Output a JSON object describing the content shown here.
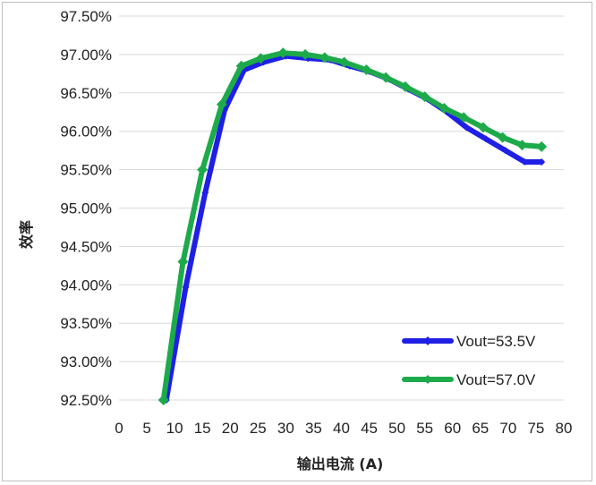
{
  "chart_data": {
    "type": "line",
    "title": "",
    "xlabel": "输出电流 (A)",
    "ylabel": "效率",
    "xlim": [
      0,
      80
    ],
    "ylim": [
      92.5,
      97.5
    ],
    "x_ticks": [
      "0",
      "5",
      "10",
      "15",
      "20",
      "25",
      "30",
      "35",
      "40",
      "45",
      "50",
      "55",
      "60",
      "65",
      "70",
      "75",
      "80"
    ],
    "y_ticks": [
      "92.50%",
      "93.00%",
      "93.50%",
      "94.00%",
      "94.50%",
      "95.00%",
      "95.50%",
      "96.00%",
      "96.50%",
      "97.00%",
      "97.50%"
    ],
    "grid": "horizontal",
    "legend_position": "bottom-right",
    "series": [
      {
        "name": "Vout=53.5V",
        "color": "#1f1fe6",
        "x": [
          8.5,
          12,
          15.5,
          19,
          22.5,
          26,
          30,
          34,
          38,
          41.5,
          45,
          48.5,
          52,
          55.5,
          59,
          62.5,
          66,
          69.5,
          73,
          76
        ],
        "y": [
          92.5,
          93.97,
          95.2,
          96.28,
          96.8,
          96.9,
          96.98,
          96.95,
          96.93,
          96.85,
          96.78,
          96.68,
          96.55,
          96.42,
          96.25,
          96.05,
          95.9,
          95.75,
          95.6,
          95.6
        ]
      },
      {
        "name": "Vout=57.0V",
        "color": "#1daa4a",
        "x": [
          8,
          11.5,
          15,
          18.5,
          22,
          25.5,
          29.5,
          33.5,
          37,
          40.5,
          44.5,
          48,
          51.5,
          55,
          58.5,
          62,
          65.5,
          69,
          72.5,
          76
        ],
        "y": [
          92.5,
          94.3,
          95.5,
          96.35,
          96.85,
          96.95,
          97.02,
          97.0,
          96.96,
          96.9,
          96.8,
          96.7,
          96.58,
          96.45,
          96.3,
          96.18,
          96.05,
          95.92,
          95.82,
          95.8
        ]
      }
    ]
  }
}
